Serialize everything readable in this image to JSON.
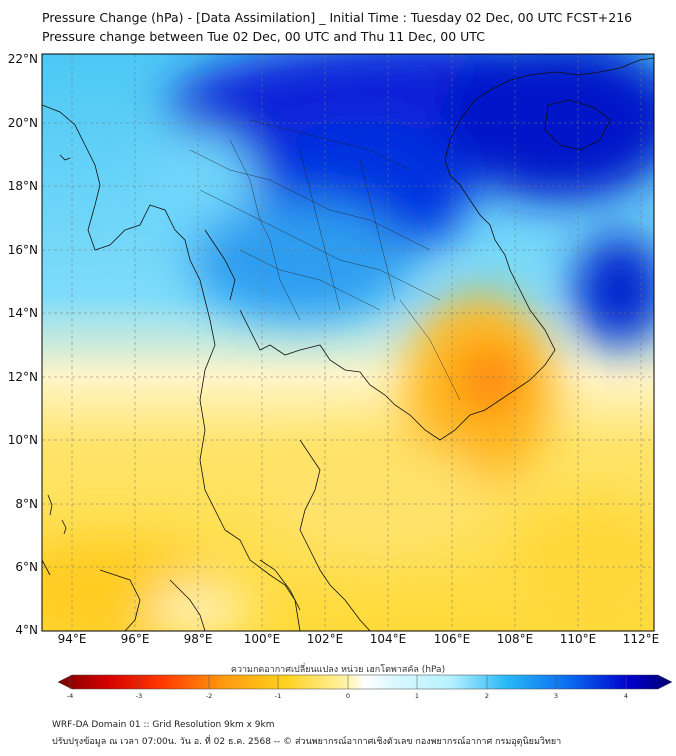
{
  "title_line1": "Pressure Change (hPa) - [Data Assimilation] _ Initial Time : Tuesday 02 Dec, 00 UTC FCST+216",
  "title_line2": "Pressure change between Tue 02 Dec, 00 UTC and Thu 11 Dec, 00 UTC",
  "lat_labels": [
    "22°N",
    "20°N",
    "18°N",
    "16°N",
    "14°N",
    "12°N",
    "10°N",
    "8°N",
    "6°N",
    "4°N"
  ],
  "lon_labels": [
    "94°E",
    "96°E",
    "98°E",
    "100°E",
    "102°E",
    "104°E",
    "106°E",
    "108°E",
    "110°E",
    "112°E"
  ],
  "colorbar": {
    "title": "ความกดอากาศเปลี่ยนแปลง หน่วย เฮกโตพาสคัล (hPa)",
    "ticks": [
      "-4",
      "-3",
      "-2",
      "-1",
      "0",
      "1",
      "2",
      "3",
      "4"
    ]
  },
  "footer_line1": "WRF-DA Domain 01 :: Grid Resolution 9km x 9km",
  "footer_line2": "ปรับปรุงข้อมูล ณ เวลา 07:00น. วัน อ. ที่ 02 ธ.ค. 2568 -- © ส่วนพยากรณ์อากาศเชิงตัวเลข กองพยากรณ์อากาศ กรมอุตุนิยมวิทยา",
  "colors": {
    "strong_fall": "#7a0000",
    "fall": "#ff3a00",
    "slight_fall": "#ffd21e",
    "neutral": "#fffbe0",
    "slight_rise": "#b6f2ff",
    "rise": "#29b8f5",
    "strong_rise": "#0000cc"
  }
}
